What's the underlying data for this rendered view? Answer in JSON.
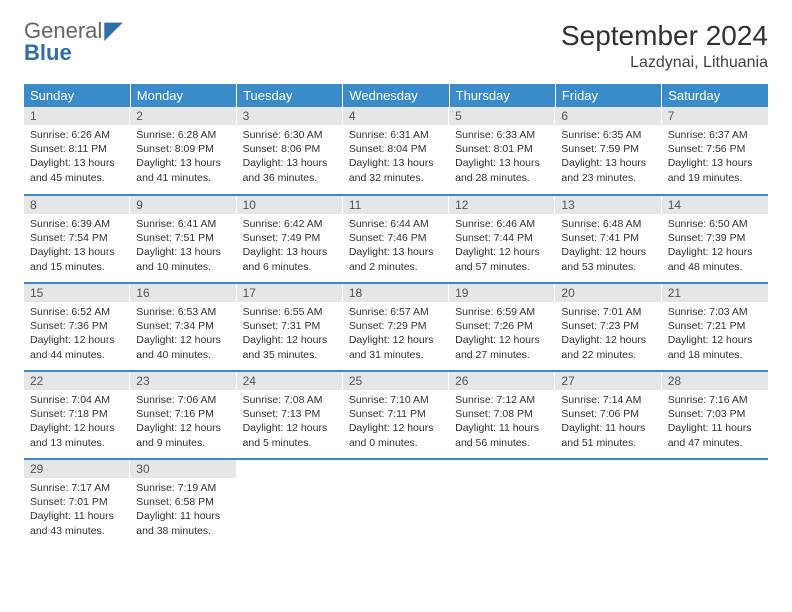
{
  "brand": {
    "line1": "General",
    "line2": "Blue"
  },
  "title": "September 2024",
  "location": "Lazdynai, Lithuania",
  "colors": {
    "header_bg": "#3a8bc9",
    "header_fg": "#ffffff",
    "daynum_bg": "#e6e6e6",
    "row_border": "#3a8bc9",
    "brand_accent": "#2f6fa7"
  },
  "weekdays": [
    "Sunday",
    "Monday",
    "Tuesday",
    "Wednesday",
    "Thursday",
    "Friday",
    "Saturday"
  ],
  "weeks": [
    [
      {
        "n": "1",
        "sr": "6:26 AM",
        "ss": "8:11 PM",
        "dl": "13 hours and 45 minutes."
      },
      {
        "n": "2",
        "sr": "6:28 AM",
        "ss": "8:09 PM",
        "dl": "13 hours and 41 minutes."
      },
      {
        "n": "3",
        "sr": "6:30 AM",
        "ss": "8:06 PM",
        "dl": "13 hours and 36 minutes."
      },
      {
        "n": "4",
        "sr": "6:31 AM",
        "ss": "8:04 PM",
        "dl": "13 hours and 32 minutes."
      },
      {
        "n": "5",
        "sr": "6:33 AM",
        "ss": "8:01 PM",
        "dl": "13 hours and 28 minutes."
      },
      {
        "n": "6",
        "sr": "6:35 AM",
        "ss": "7:59 PM",
        "dl": "13 hours and 23 minutes."
      },
      {
        "n": "7",
        "sr": "6:37 AM",
        "ss": "7:56 PM",
        "dl": "13 hours and 19 minutes."
      }
    ],
    [
      {
        "n": "8",
        "sr": "6:39 AM",
        "ss": "7:54 PM",
        "dl": "13 hours and 15 minutes."
      },
      {
        "n": "9",
        "sr": "6:41 AM",
        "ss": "7:51 PM",
        "dl": "13 hours and 10 minutes."
      },
      {
        "n": "10",
        "sr": "6:42 AM",
        "ss": "7:49 PM",
        "dl": "13 hours and 6 minutes."
      },
      {
        "n": "11",
        "sr": "6:44 AM",
        "ss": "7:46 PM",
        "dl": "13 hours and 2 minutes."
      },
      {
        "n": "12",
        "sr": "6:46 AM",
        "ss": "7:44 PM",
        "dl": "12 hours and 57 minutes."
      },
      {
        "n": "13",
        "sr": "6:48 AM",
        "ss": "7:41 PM",
        "dl": "12 hours and 53 minutes."
      },
      {
        "n": "14",
        "sr": "6:50 AM",
        "ss": "7:39 PM",
        "dl": "12 hours and 48 minutes."
      }
    ],
    [
      {
        "n": "15",
        "sr": "6:52 AM",
        "ss": "7:36 PM",
        "dl": "12 hours and 44 minutes."
      },
      {
        "n": "16",
        "sr": "6:53 AM",
        "ss": "7:34 PM",
        "dl": "12 hours and 40 minutes."
      },
      {
        "n": "17",
        "sr": "6:55 AM",
        "ss": "7:31 PM",
        "dl": "12 hours and 35 minutes."
      },
      {
        "n": "18",
        "sr": "6:57 AM",
        "ss": "7:29 PM",
        "dl": "12 hours and 31 minutes."
      },
      {
        "n": "19",
        "sr": "6:59 AM",
        "ss": "7:26 PM",
        "dl": "12 hours and 27 minutes."
      },
      {
        "n": "20",
        "sr": "7:01 AM",
        "ss": "7:23 PM",
        "dl": "12 hours and 22 minutes."
      },
      {
        "n": "21",
        "sr": "7:03 AM",
        "ss": "7:21 PM",
        "dl": "12 hours and 18 minutes."
      }
    ],
    [
      {
        "n": "22",
        "sr": "7:04 AM",
        "ss": "7:18 PM",
        "dl": "12 hours and 13 minutes."
      },
      {
        "n": "23",
        "sr": "7:06 AM",
        "ss": "7:16 PM",
        "dl": "12 hours and 9 minutes."
      },
      {
        "n": "24",
        "sr": "7:08 AM",
        "ss": "7:13 PM",
        "dl": "12 hours and 5 minutes."
      },
      {
        "n": "25",
        "sr": "7:10 AM",
        "ss": "7:11 PM",
        "dl": "12 hours and 0 minutes."
      },
      {
        "n": "26",
        "sr": "7:12 AM",
        "ss": "7:08 PM",
        "dl": "11 hours and 56 minutes."
      },
      {
        "n": "27",
        "sr": "7:14 AM",
        "ss": "7:06 PM",
        "dl": "11 hours and 51 minutes."
      },
      {
        "n": "28",
        "sr": "7:16 AM",
        "ss": "7:03 PM",
        "dl": "11 hours and 47 minutes."
      }
    ],
    [
      {
        "n": "29",
        "sr": "7:17 AM",
        "ss": "7:01 PM",
        "dl": "11 hours and 43 minutes."
      },
      {
        "n": "30",
        "sr": "7:19 AM",
        "ss": "6:58 PM",
        "dl": "11 hours and 38 minutes."
      },
      null,
      null,
      null,
      null,
      null
    ]
  ],
  "labels": {
    "sunrise": "Sunrise:",
    "sunset": "Sunset:",
    "daylight": "Daylight:"
  }
}
